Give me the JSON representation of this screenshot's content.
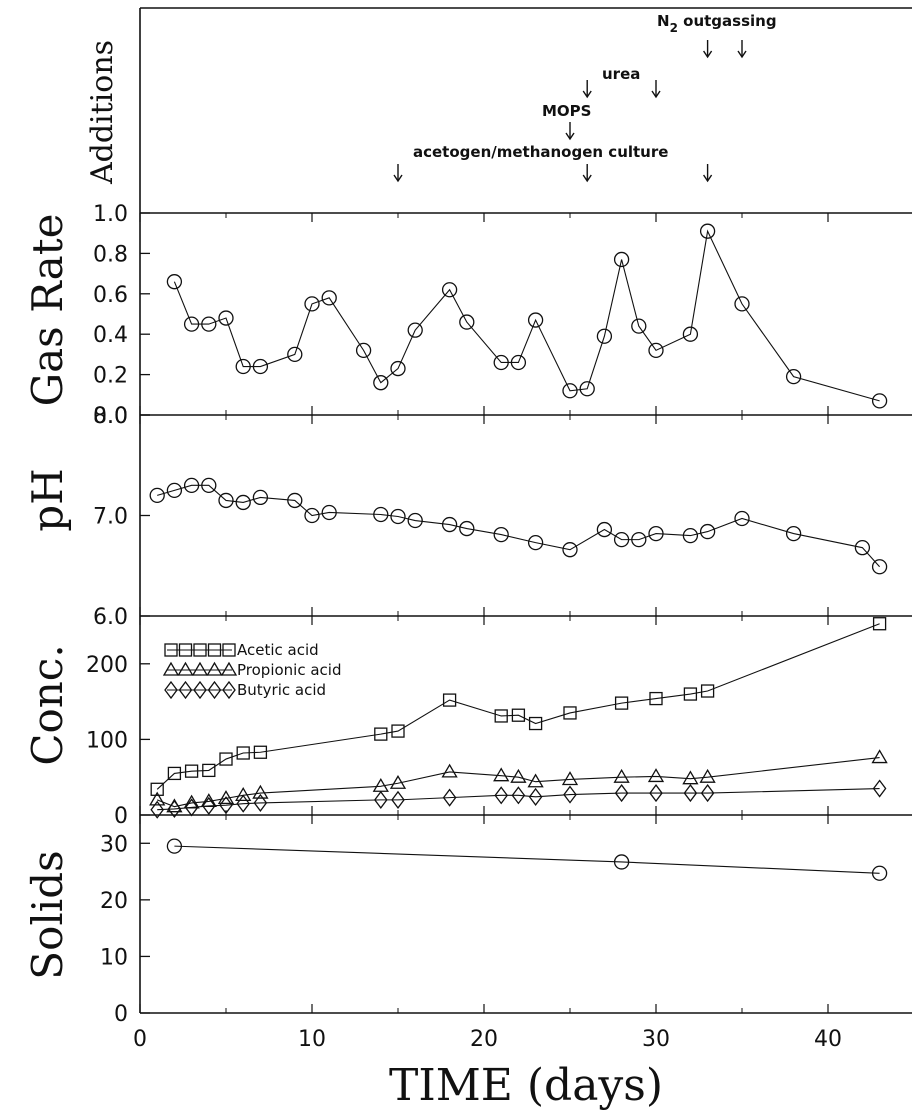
{
  "chart_data": [
    {
      "type": "annotation",
      "ylabel": "Additions",
      "events": [
        {
          "label": "acetogen/methanogen culture",
          "days": [
            15,
            26,
            33
          ]
        },
        {
          "label": "MOPS",
          "days": [
            25
          ]
        },
        {
          "label": "urea",
          "days": [
            26,
            30
          ]
        },
        {
          "label_main": "N",
          "label_sub": "2",
          "label_rest": " outgassing",
          "days": [
            33,
            35
          ]
        }
      ]
    },
    {
      "type": "line",
      "ylabel": "Gas Rate",
      "ylim": [
        0,
        1.0
      ],
      "yticks": [
        "0.0",
        "0.2",
        "0.4",
        "0.6",
        "0.8",
        "1.0"
      ],
      "series": [
        {
          "marker": "circle",
          "x": [
            2,
            3,
            4,
            5,
            6,
            7,
            9,
            10,
            11,
            13,
            14,
            15,
            16,
            18,
            19,
            21,
            22,
            23,
            25,
            26,
            27,
            28,
            29,
            30,
            32,
            33,
            35,
            38,
            43
          ],
          "y": [
            0.66,
            0.45,
            0.45,
            0.48,
            0.24,
            0.24,
            0.3,
            0.55,
            0.58,
            0.32,
            0.16,
            0.23,
            0.42,
            0.62,
            0.46,
            0.26,
            0.26,
            0.47,
            0.12,
            0.13,
            0.39,
            0.77,
            0.44,
            0.32,
            0.4,
            0.91,
            0.55,
            0.19,
            0.07
          ]
        }
      ]
    },
    {
      "type": "line",
      "ylabel": "pH",
      "ylim": [
        6.0,
        8.0
      ],
      "yticks": [
        "6.0",
        "7.0",
        "8.0"
      ],
      "series": [
        {
          "marker": "circle",
          "x": [
            1,
            2,
            3,
            4,
            5,
            6,
            7,
            9,
            10,
            11,
            14,
            15,
            16,
            18,
            19,
            21,
            23,
            25,
            27,
            28,
            29,
            30,
            32,
            33,
            35,
            38,
            42,
            43
          ],
          "y": [
            7.2,
            7.25,
            7.3,
            7.3,
            7.15,
            7.13,
            7.18,
            7.15,
            7.0,
            7.03,
            7.01,
            6.99,
            6.95,
            6.91,
            6.87,
            6.81,
            6.73,
            6.66,
            6.86,
            6.76,
            6.76,
            6.82,
            6.8,
            6.84,
            6.97,
            6.82,
            6.68,
            6.49
          ]
        }
      ]
    },
    {
      "type": "line",
      "ylabel": "Conc.",
      "ylim": [
        0,
        250
      ],
      "yticks": [
        "0",
        "100",
        "200"
      ],
      "series": [
        {
          "name": "Acetic acid",
          "marker": "square",
          "x": [
            1,
            2,
            3,
            4,
            5,
            6,
            7,
            14,
            15,
            18,
            21,
            22,
            23,
            25,
            28,
            30,
            32,
            33,
            43
          ],
          "y": [
            34,
            55,
            58,
            59,
            74,
            82,
            83,
            107,
            111,
            152,
            131,
            132,
            121,
            135,
            148,
            154,
            160,
            164,
            253
          ]
        },
        {
          "name": "Propionic acid",
          "marker": "triangle",
          "x": [
            1,
            2,
            3,
            4,
            5,
            6,
            7,
            14,
            15,
            18,
            21,
            22,
            23,
            25,
            28,
            30,
            32,
            33,
            43
          ],
          "y": [
            20,
            11,
            16,
            18,
            22,
            26,
            29,
            38,
            42,
            57,
            52,
            50,
            44,
            47,
            50,
            51,
            48,
            50,
            76
          ]
        },
        {
          "name": "Butyric acid",
          "marker": "diamond",
          "x": [
            1,
            2,
            3,
            4,
            5,
            6,
            7,
            14,
            15,
            18,
            21,
            22,
            23,
            25,
            28,
            30,
            32,
            33,
            43
          ],
          "y": [
            7,
            8,
            10,
            12,
            13,
            15,
            16,
            20,
            20,
            23,
            26,
            26,
            24,
            27,
            29,
            29,
            29,
            29,
            35
          ]
        }
      ]
    },
    {
      "type": "line",
      "ylabel": "Solids",
      "ylim": [
        0,
        35
      ],
      "yticks": [
        "0",
        "10",
        "20",
        "30"
      ],
      "series": [
        {
          "marker": "circle",
          "x": [
            2,
            28,
            43
          ],
          "y": [
            29.5,
            26.7,
            24.7
          ]
        }
      ]
    }
  ],
  "x_axis": {
    "label": "TIME (days)",
    "xlim": [
      0,
      44
    ],
    "ticks": [
      "0",
      "10",
      "20",
      "30",
      "40"
    ]
  }
}
